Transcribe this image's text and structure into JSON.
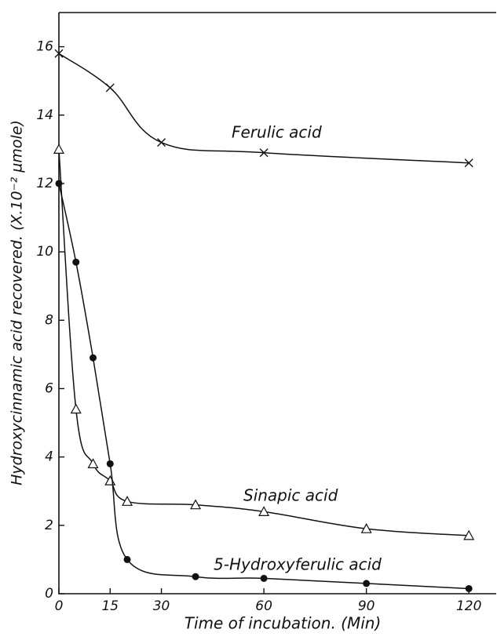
{
  "chart_data": {
    "type": "line",
    "x_label": "Time of incubation. (Min)",
    "y_label": "Hydroxycinnamic acid recovered. (X.10⁻² µmole)",
    "xlim": [
      0,
      128
    ],
    "ylim": [
      0,
      17
    ],
    "xticks": [
      0,
      15,
      30,
      60,
      90,
      120
    ],
    "yticks": [
      0,
      2,
      4,
      6,
      8,
      10,
      12,
      14,
      16
    ],
    "series": [
      {
        "name": "Ferulic acid",
        "color": "#111111",
        "marker": "x",
        "x": [
          0,
          15,
          30,
          60,
          120
        ],
        "values": [
          15.8,
          14.8,
          13.2,
          12.9,
          12.6
        ]
      },
      {
        "name": "Sinapic acid",
        "color": "#111111",
        "marker": "triangle",
        "x": [
          0,
          5,
          10,
          15,
          20,
          40,
          60,
          90,
          120
        ],
        "values": [
          13,
          5.4,
          3.8,
          3.3,
          2.7,
          2.6,
          2.4,
          1.9,
          1.7
        ]
      },
      {
        "name": "5-Hydroxyferulic acid",
        "color": "#111111",
        "marker": "circle",
        "x": [
          0,
          5,
          10,
          15,
          20,
          40,
          60,
          90,
          120
        ],
        "values": [
          12,
          9.7,
          6.9,
          3.8,
          1.0,
          0.5,
          0.45,
          0.3,
          0.15
        ]
      }
    ]
  }
}
